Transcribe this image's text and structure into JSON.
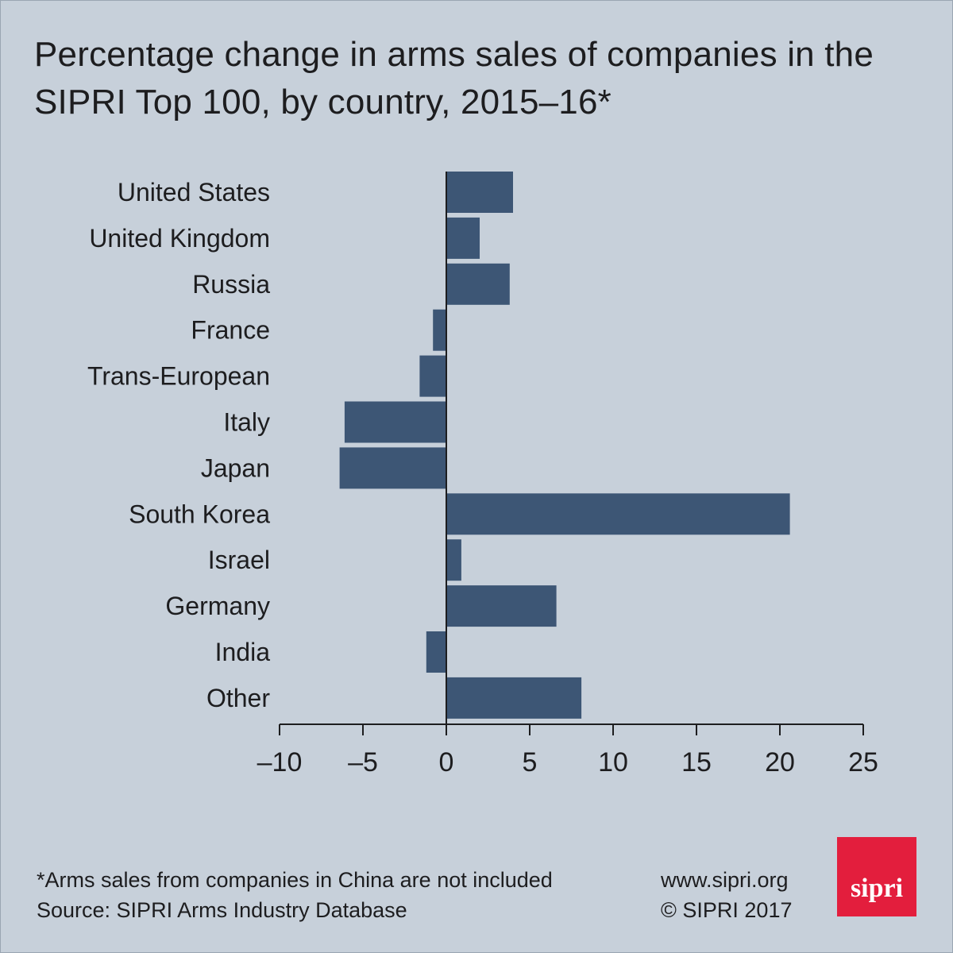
{
  "title": "Percentage change in arms sales of companies in the SIPRI Top 100, by country, 2015–16*",
  "colors": {
    "bar": "#3d5675",
    "background": "#c7d0da",
    "axis": "#1d1d1f",
    "logo": "#e31e3d"
  },
  "chart_data": {
    "type": "bar",
    "orientation": "horizontal",
    "categories": [
      "United States",
      "United Kingdom",
      "Russia",
      "France",
      "Trans-European",
      "Italy",
      "Japan",
      "South Korea",
      "Israel",
      "Germany",
      "India",
      "Other"
    ],
    "values": [
      4.0,
      2.0,
      3.8,
      -0.8,
      -1.6,
      -6.1,
      -6.4,
      20.6,
      0.9,
      6.6,
      -1.2,
      8.1
    ],
    "xlim": [
      -10,
      25
    ],
    "xticks": [
      -10,
      -5,
      0,
      5,
      10,
      15,
      20,
      25
    ],
    "xtick_labels": [
      "–10",
      "–5",
      "0",
      "5",
      "10",
      "15",
      "20",
      "25"
    ],
    "grid": false
  },
  "footer": {
    "note": "*Arms sales from companies in China are not included",
    "source": "Source: SIPRI Arms Industry Database",
    "website": "www.sipri.org",
    "copyright": "© SIPRI 2017"
  },
  "logo": {
    "text": "sipri"
  }
}
